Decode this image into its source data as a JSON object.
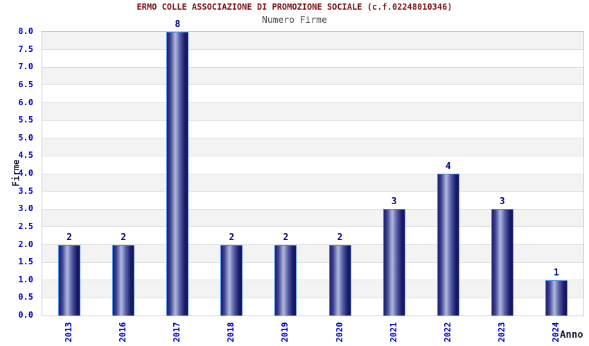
{
  "chart_data": {
    "type": "bar",
    "title": "ERMO COLLE ASSOCIAZIONE DI PROMOZIONE SOCIALE (c.f.02248010346)",
    "subtitle": "Numero Firme",
    "xlabel": "Anno",
    "ylabel": "Firme",
    "categories": [
      "2013",
      "2016",
      "2017",
      "2018",
      "2019",
      "2020",
      "2021",
      "2022",
      "2023",
      "2024"
    ],
    "values": [
      2,
      2,
      8,
      2,
      2,
      2,
      3,
      4,
      3,
      1
    ],
    "ylim": [
      0,
      8
    ],
    "ytick_step": 0.5,
    "ytick_format_decimals": 1,
    "grid": "horizontal gridlines every 0.5 with alternating gray bands",
    "legend": "none",
    "colors": {
      "title": "#7a1414",
      "subtitle": "#4d4d4d",
      "tick_labels": "#0000cc",
      "value_labels": "#00007d",
      "axis_titles": "#16162e",
      "bar_border": "#4189e6",
      "bar_dark": "#1d1d70",
      "bar_light": "#b2bade",
      "band": "#f3f3f3",
      "gridline": "#dedede",
      "plot_border": "#c9c9c9",
      "background": "#ffffff"
    }
  }
}
